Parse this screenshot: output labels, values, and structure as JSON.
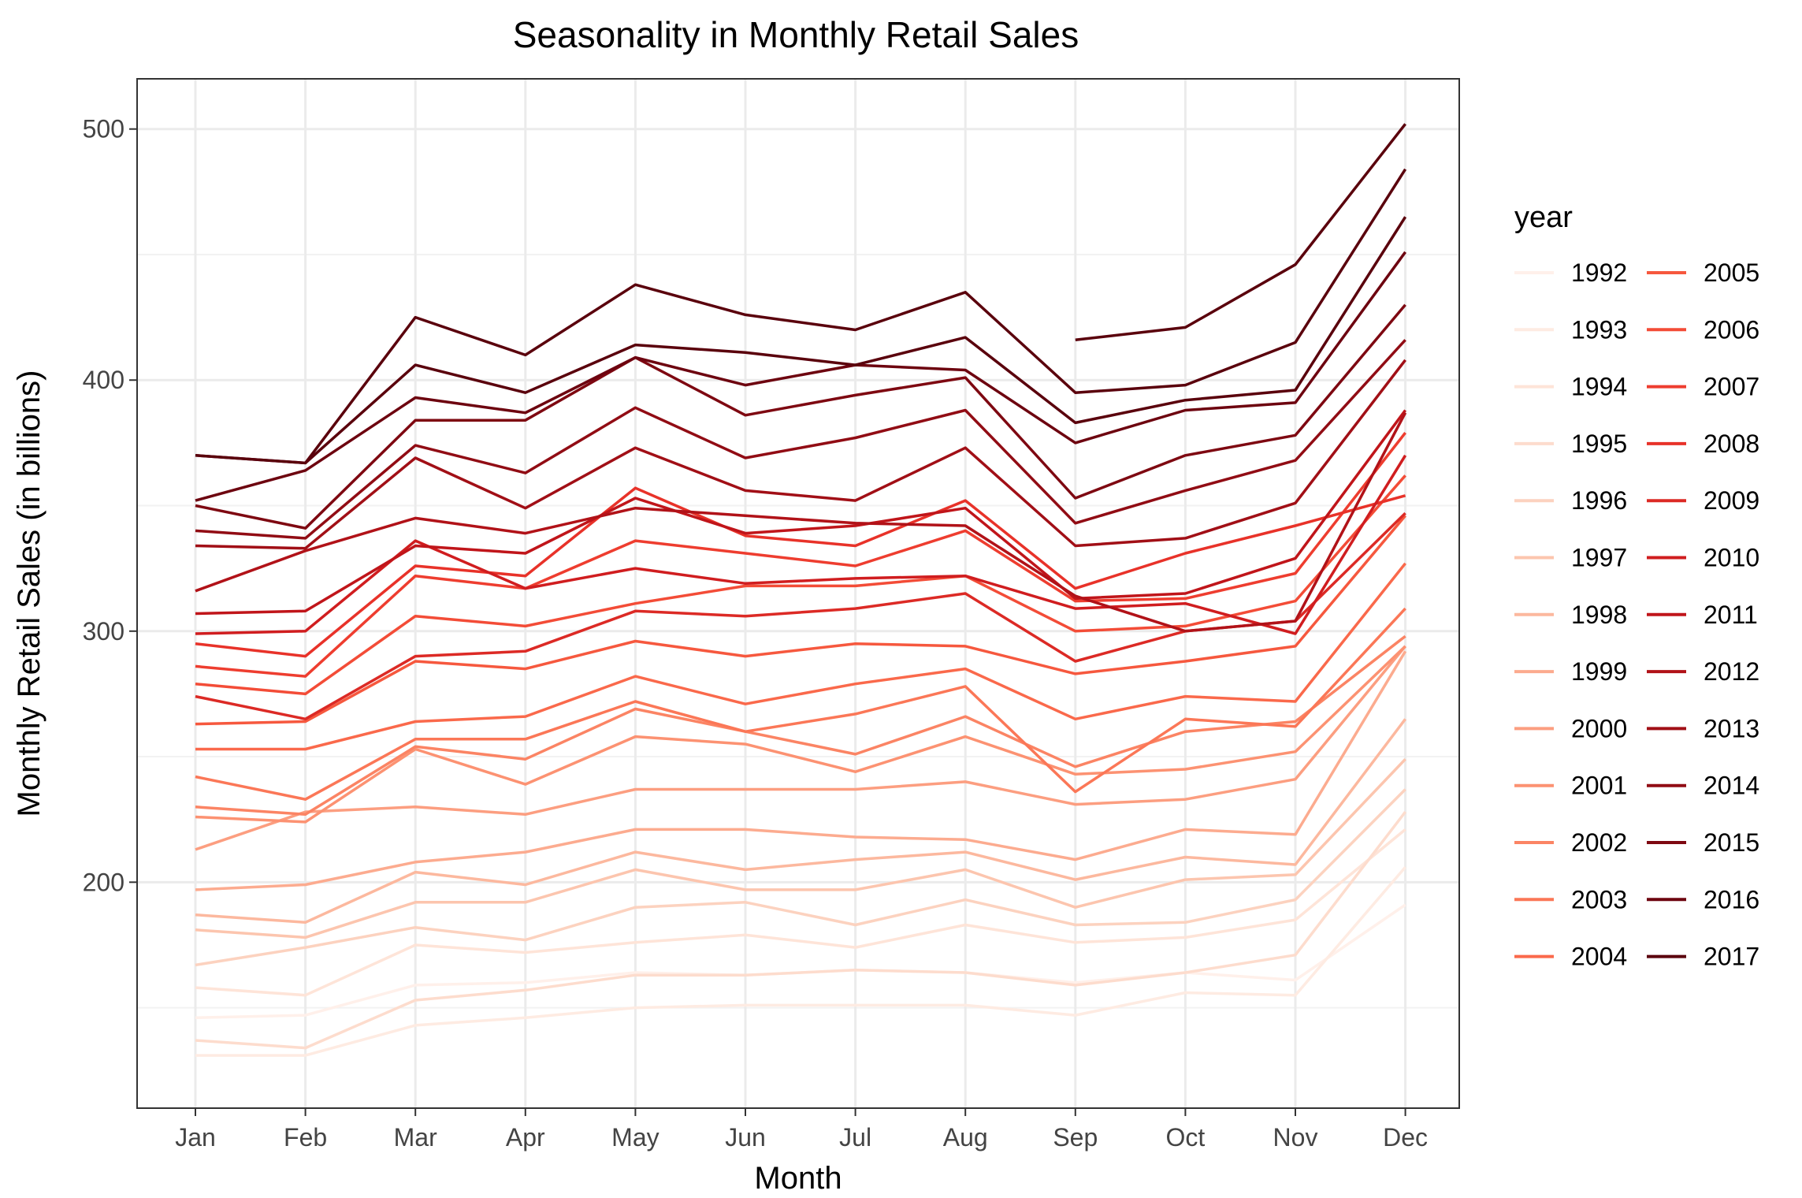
{
  "chart_data": {
    "type": "line",
    "title": "Seasonality in Monthly Retail Sales",
    "xlabel": "Month",
    "ylabel": "Monthly Retail Sales (in billions)",
    "categories": [
      "Jan",
      "Feb",
      "Mar",
      "Apr",
      "May",
      "Jun",
      "Jul",
      "Aug",
      "Sep",
      "Oct",
      "Nov",
      "Dec"
    ],
    "ylim": [
      110,
      520
    ],
    "yticks": [
      200,
      300,
      400,
      500
    ],
    "grid": true,
    "legend": {
      "title": "year",
      "position": "right",
      "columns": 2
    },
    "series": [
      {
        "name": "1992",
        "color": "#fff0ea",
        "values": [
          146,
          147,
          159,
          160,
          164,
          163,
          165,
          164,
          160,
          164,
          161,
          191
        ]
      },
      {
        "name": "1993",
        "color": "#feebe2",
        "values": [
          131,
          131,
          143,
          146,
          150,
          151,
          151,
          151,
          147,
          156,
          155,
          206
        ]
      },
      {
        "name": "1994",
        "color": "#fee4d8",
        "values": [
          158,
          155,
          175,
          172,
          176,
          179,
          174,
          183,
          176,
          178,
          185,
          221
        ]
      },
      {
        "name": "1995",
        "color": "#fddccd",
        "values": [
          137,
          134,
          153,
          157,
          163,
          163,
          165,
          164,
          159,
          164,
          171,
          228
        ]
      },
      {
        "name": "1996",
        "color": "#fcd2bf",
        "values": [
          167,
          174,
          182,
          177,
          190,
          192,
          183,
          193,
          183,
          184,
          193,
          237
        ]
      },
      {
        "name": "1997",
        "color": "#fcc5ae",
        "values": [
          181,
          178,
          192,
          192,
          205,
          197,
          197,
          205,
          190,
          201,
          203,
          249
        ]
      },
      {
        "name": "1998",
        "color": "#fcb89e",
        "values": [
          187,
          184,
          204,
          199,
          212,
          205,
          209,
          212,
          201,
          210,
          207,
          265
        ]
      },
      {
        "name": "1999",
        "color": "#fcab8f",
        "values": [
          197,
          199,
          208,
          212,
          221,
          221,
          218,
          217,
          209,
          221,
          219,
          292
        ]
      },
      {
        "name": "2000",
        "color": "#fc9e80",
        "values": [
          213,
          228,
          230,
          227,
          237,
          237,
          237,
          240,
          231,
          233,
          241,
          294
        ]
      },
      {
        "name": "2001",
        "color": "#fc9272",
        "values": [
          226,
          224,
          253,
          239,
          258,
          255,
          244,
          258,
          243,
          245,
          252,
          294
        ]
      },
      {
        "name": "2002",
        "color": "#fb8464",
        "values": [
          230,
          227,
          254,
          249,
          269,
          260,
          251,
          266,
          246,
          260,
          264,
          298
        ]
      },
      {
        "name": "2003",
        "color": "#fb7757",
        "values": [
          242,
          233,
          257,
          257,
          272,
          260,
          267,
          278,
          236,
          265,
          262,
          309
        ]
      },
      {
        "name": "2004",
        "color": "#fa694b",
        "values": [
          253,
          253,
          264,
          266,
          282,
          271,
          279,
          285,
          265,
          274,
          272,
          327
        ]
      },
      {
        "name": "2005",
        "color": "#f6583e",
        "values": [
          263,
          264,
          288,
          285,
          296,
          290,
          295,
          294,
          283,
          288,
          294,
          346
        ]
      },
      {
        "name": "2006",
        "color": "#f34c37",
        "values": [
          279,
          275,
          306,
          302,
          311,
          318,
          318,
          322,
          300,
          302,
          312,
          362
        ]
      },
      {
        "name": "2007",
        "color": "#ee3d2f",
        "values": [
          286,
          282,
          322,
          317,
          336,
          331,
          326,
          340,
          312,
          313,
          323,
          379
        ]
      },
      {
        "name": "2008",
        "color": "#e83229",
        "values": [
          295,
          290,
          326,
          322,
          357,
          338,
          334,
          352,
          317,
          331,
          342,
          354
        ]
      },
      {
        "name": "2009",
        "color": "#dc2a25",
        "values": [
          274,
          265,
          290,
          292,
          308,
          306,
          309,
          315,
          288,
          300,
          304,
          347
        ]
      },
      {
        "name": "2010",
        "color": "#d01d1f",
        "values": [
          299,
          300,
          336,
          317,
          325,
          319,
          321,
          322,
          309,
          311,
          299,
          370
        ]
      },
      {
        "name": "2011",
        "color": "#c0151a",
        "values": [
          307,
          308,
          334,
          331,
          353,
          339,
          342,
          349,
          313,
          315,
          329,
          388
        ]
      },
      {
        "name": "2012",
        "color": "#b11218",
        "values": [
          316,
          332,
          345,
          339,
          349,
          346,
          343,
          342,
          314,
          300,
          304,
          387
        ]
      },
      {
        "name": "2013",
        "color": "#a10f16",
        "values": [
          334,
          333,
          369,
          349,
          373,
          356,
          352,
          373,
          334,
          337,
          351,
          408
        ]
      },
      {
        "name": "2014",
        "color": "#910c14",
        "values": [
          340,
          337,
          374,
          363,
          389,
          369,
          377,
          388,
          343,
          356,
          368,
          416
        ]
      },
      {
        "name": "2015",
        "color": "#7e0811",
        "values": [
          350,
          341,
          384,
          384,
          409,
          386,
          394,
          401,
          353,
          370,
          378,
          430
        ]
      },
      {
        "name": "2016",
        "color": "#6d030f",
        "values": [
          352,
          364,
          393,
          387,
          409,
          398,
          406,
          404,
          375,
          388,
          391,
          451
        ]
      },
      {
        "name": "2017",
        "color": "#5a000c",
        "values": [
          370,
          367,
          406,
          395,
          414,
          411,
          406,
          417,
          383,
          392,
          396,
          465
        ]
      },
      {
        "name": "",
        "color": "#5a000c",
        "values": [
          370,
          367,
          425,
          410,
          438,
          426,
          420,
          435,
          395,
          398,
          415,
          484
        ]
      },
      {
        "name": "",
        "color": "#5a000c",
        "values": [
          null,
          null,
          null,
          null,
          null,
          null,
          null,
          null,
          416,
          421,
          446,
          502
        ]
      }
    ]
  }
}
